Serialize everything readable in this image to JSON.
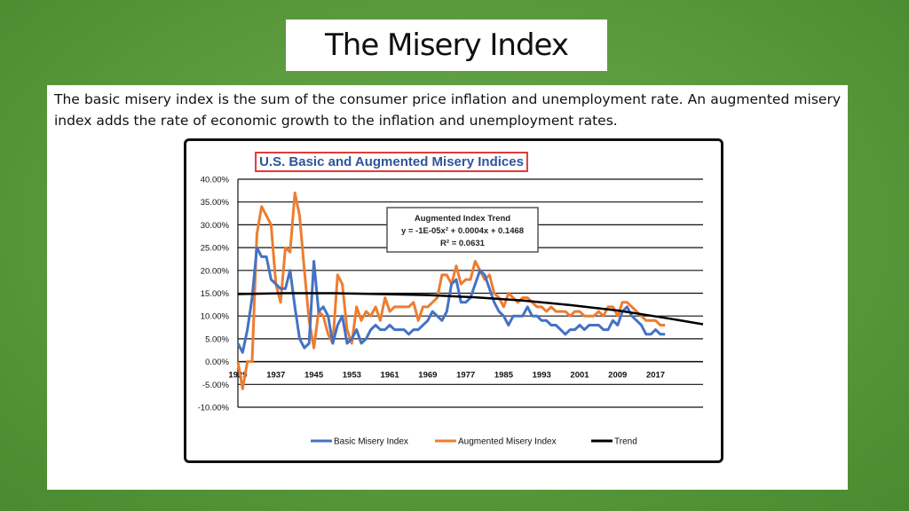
{
  "slide": {
    "title": "The Misery Index",
    "intro": "The basic misery index is the sum of the consumer price inflation and unemployment rate. An augmented misery index adds the rate of economic growth to the inflation and unemployment rates."
  },
  "colors": {
    "background": "#5a9a3c",
    "basic": "#4472c4",
    "augmented": "#ed7d31",
    "trend": "#000000",
    "title_box_border": "#e03c3c",
    "title_text": "#2f5597"
  },
  "chart_data": {
    "type": "line",
    "title": "U.S. Basic and Augmented Misery Indices",
    "ylim": [
      -0.1,
      0.4
    ],
    "xlim": [
      1929,
      2027
    ],
    "grid": true,
    "legend_position": "bottom",
    "y_ticks": [
      "40.00%",
      "35.00%",
      "30.00%",
      "25.00%",
      "20.00%",
      "15.00%",
      "10.00%",
      "5.00%",
      "0.00%",
      "-5.00%",
      "-10.00%"
    ],
    "x_ticks": [
      "1929",
      "1937",
      "1945",
      "1953",
      "1961",
      "1969",
      "1977",
      "1985",
      "1993",
      "2001",
      "2009",
      "2017"
    ],
    "annotation": {
      "title": "Augmented Index Trend",
      "equation": "y = -1E-05x² + 0.0004x + 0.1468",
      "r2": "R² = 0.0631"
    },
    "legend": [
      "Basic Misery Index",
      "Augmented Misery Index",
      "Trend"
    ],
    "series": [
      {
        "name": "Basic Misery Index",
        "x": [
          1929,
          1930,
          1931,
          1932,
          1933,
          1934,
          1935,
          1936,
          1937,
          1938,
          1939,
          1940,
          1941,
          1942,
          1943,
          1944,
          1945,
          1946,
          1947,
          1948,
          1949,
          1950,
          1951,
          1952,
          1953,
          1954,
          1955,
          1956,
          1957,
          1958,
          1959,
          1960,
          1961,
          1962,
          1963,
          1964,
          1965,
          1966,
          1967,
          1968,
          1969,
          1970,
          1971,
          1972,
          1973,
          1974,
          1975,
          1976,
          1977,
          1978,
          1979,
          1980,
          1981,
          1982,
          1983,
          1984,
          1985,
          1986,
          1987,
          1988,
          1989,
          1990,
          1991,
          1992,
          1993,
          1994,
          1995,
          1996,
          1997,
          1998,
          1999,
          2000,
          2001,
          2002,
          2003,
          2004,
          2005,
          2006,
          2007,
          2008,
          2009,
          2010,
          2011,
          2012,
          2013,
          2014,
          2015,
          2016,
          2017,
          2018,
          2019
        ],
        "y": [
          0.04,
          0.02,
          0.07,
          0.14,
          0.25,
          0.23,
          0.23,
          0.18,
          0.17,
          0.16,
          0.16,
          0.2,
          0.12,
          0.05,
          0.03,
          0.04,
          0.22,
          0.11,
          0.12,
          0.1,
          0.04,
          0.08,
          0.1,
          0.04,
          0.05,
          0.07,
          0.04,
          0.05,
          0.07,
          0.08,
          0.07,
          0.07,
          0.08,
          0.07,
          0.07,
          0.07,
          0.06,
          0.07,
          0.07,
          0.08,
          0.09,
          0.11,
          0.1,
          0.09,
          0.11,
          0.17,
          0.18,
          0.13,
          0.13,
          0.14,
          0.17,
          0.2,
          0.19,
          0.16,
          0.13,
          0.11,
          0.1,
          0.08,
          0.1,
          0.1,
          0.1,
          0.12,
          0.1,
          0.1,
          0.09,
          0.09,
          0.08,
          0.08,
          0.07,
          0.06,
          0.07,
          0.07,
          0.08,
          0.07,
          0.08,
          0.08,
          0.08,
          0.07,
          0.07,
          0.09,
          0.08,
          0.11,
          0.12,
          0.1,
          0.09,
          0.08,
          0.06,
          0.06,
          0.07,
          0.06,
          0.06
        ]
      },
      {
        "name": "Augmented Misery Index",
        "x": [
          1929,
          1930,
          1931,
          1932,
          1933,
          1934,
          1935,
          1936,
          1937,
          1938,
          1939,
          1940,
          1941,
          1942,
          1943,
          1944,
          1945,
          1946,
          1947,
          1948,
          1949,
          1950,
          1951,
          1952,
          1953,
          1954,
          1955,
          1956,
          1957,
          1958,
          1959,
          1960,
          1961,
          1962,
          1963,
          1964,
          1965,
          1966,
          1967,
          1968,
          1969,
          1970,
          1971,
          1972,
          1973,
          1974,
          1975,
          1976,
          1977,
          1978,
          1979,
          1980,
          1981,
          1982,
          1983,
          1984,
          1985,
          1986,
          1987,
          1988,
          1989,
          1990,
          1991,
          1992,
          1993,
          1994,
          1995,
          1996,
          1997,
          1998,
          1999,
          2000,
          2001,
          2002,
          2003,
          2004,
          2005,
          2006,
          2007,
          2008,
          2009,
          2010,
          2011,
          2012,
          2013,
          2014,
          2015,
          2016,
          2017,
          2018,
          2019
        ],
        "y": [
          0.0,
          -0.06,
          0.0,
          0.0,
          0.28,
          0.34,
          0.32,
          0.3,
          0.17,
          0.13,
          0.25,
          0.24,
          0.37,
          0.32,
          0.2,
          0.09,
          0.03,
          0.11,
          0.1,
          0.06,
          0.04,
          0.19,
          0.17,
          0.07,
          0.04,
          0.12,
          0.09,
          0.11,
          0.1,
          0.12,
          0.09,
          0.14,
          0.11,
          0.12,
          0.12,
          0.12,
          0.12,
          0.13,
          0.09,
          0.12,
          0.12,
          0.13,
          0.14,
          0.19,
          0.19,
          0.17,
          0.21,
          0.17,
          0.18,
          0.18,
          0.22,
          0.2,
          0.18,
          0.19,
          0.15,
          0.14,
          0.12,
          0.15,
          0.14,
          0.13,
          0.14,
          0.14,
          0.13,
          0.12,
          0.12,
          0.11,
          0.12,
          0.11,
          0.11,
          0.11,
          0.1,
          0.11,
          0.11,
          0.1,
          0.1,
          0.1,
          0.11,
          0.1,
          0.12,
          0.12,
          0.1,
          0.13,
          0.13,
          0.12,
          0.11,
          0.1,
          0.09,
          0.09,
          0.09,
          0.08,
          0.08
        ]
      },
      {
        "name": "Trend",
        "x": [
          1929,
          1939,
          1949,
          1959,
          1969,
          1979,
          1989,
          1999,
          2009,
          2019,
          2027
        ],
        "y": [
          0.148,
          0.15,
          0.15,
          0.148,
          0.146,
          0.141,
          0.134,
          0.124,
          0.112,
          0.096,
          0.082
        ]
      }
    ]
  }
}
